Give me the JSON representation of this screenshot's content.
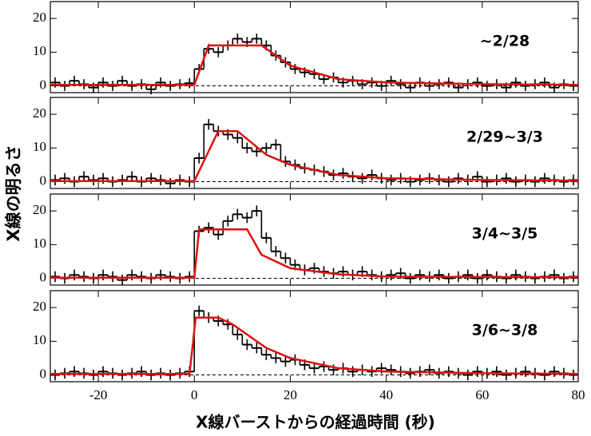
{
  "chart_data": {
    "type": "step",
    "xlabel": "X線バーストからの経過時間 (秒)",
    "ylabel": "X線の明るさ",
    "xlim": [
      -30,
      80
    ],
    "xticks": [
      -20,
      0,
      20,
      40,
      60,
      80
    ],
    "ylim": [
      -2,
      25
    ],
    "yticks": [
      0,
      10,
      20
    ],
    "data_color": "#000000",
    "model_color": "#e01010",
    "x": [
      -29,
      -27,
      -25,
      -23,
      -21,
      -19,
      -17,
      -15,
      -13,
      -11,
      -9,
      -7,
      -5,
      -3,
      -1,
      1,
      3,
      5,
      7,
      9,
      11,
      13,
      15,
      17,
      19,
      21,
      23,
      25,
      27,
      29,
      31,
      33,
      35,
      37,
      39,
      41,
      43,
      45,
      47,
      49,
      51,
      53,
      55,
      57,
      59,
      61,
      63,
      65,
      67,
      69,
      71,
      73,
      75,
      77,
      79
    ],
    "panels": [
      {
        "label": "~2/28",
        "error": 1.5,
        "values": [
          1,
          0,
          1.5,
          0.5,
          -0.5,
          1,
          0,
          1.5,
          0,
          0.5,
          -1,
          1,
          0,
          0.5,
          0.8,
          5,
          11,
          10,
          12,
          14,
          13,
          14,
          12,
          9,
          7,
          5,
          4,
          3.5,
          2,
          2.5,
          1,
          1.5,
          0.5,
          1,
          0,
          1.5,
          0.5,
          -0.5,
          1,
          0,
          0.5,
          1,
          -0.5,
          0.5,
          1,
          0,
          0.5,
          -0.5,
          1,
          0,
          0.5,
          1,
          -0.5,
          0.5,
          0
        ],
        "model_x": [
          -30,
          0,
          3,
          14,
          20,
          30,
          40,
          60,
          80
        ],
        "model_y": [
          0.3,
          0.3,
          12,
          12,
          6,
          2,
          1,
          0.5,
          0.3
        ]
      },
      {
        "label": "2/29~3/3",
        "error": 1.6,
        "values": [
          0.5,
          1,
          0,
          1.5,
          0.5,
          1,
          0,
          0.5,
          1.5,
          0,
          1,
          0.5,
          -0.5,
          0.5,
          0,
          7,
          17,
          15,
          14,
          13,
          10,
          9,
          10,
          11,
          6,
          5,
          4,
          3.5,
          3,
          2,
          2.5,
          1.5,
          1,
          2,
          1,
          0.5,
          1,
          0,
          0.5,
          1,
          0.5,
          0,
          1,
          0.5,
          1.5,
          0,
          0.5,
          1,
          0,
          0.5,
          0,
          1,
          0.5,
          0,
          0.5
        ],
        "model_x": [
          -30,
          0,
          5,
          9,
          15,
          20,
          30,
          40,
          60,
          80
        ],
        "model_y": [
          0.2,
          0.2,
          15,
          15,
          8,
          5,
          2,
          1,
          0.5,
          0.3
        ]
      },
      {
        "label": "3/4~3/5",
        "error": 1.6,
        "values": [
          0.5,
          0,
          1,
          0.5,
          0,
          1,
          0.5,
          -0.5,
          1,
          0.5,
          0,
          1,
          0.5,
          0,
          0.5,
          14,
          15,
          13,
          17,
          19,
          18,
          20,
          12,
          8,
          6,
          4,
          2.5,
          3,
          2,
          1.5,
          2,
          1,
          2,
          1,
          0.5,
          1,
          1.5,
          0,
          1,
          0.5,
          1,
          0,
          0.5,
          1,
          0,
          1,
          0.5,
          0,
          1,
          0.5,
          0,
          0.5,
          1,
          0,
          0.5
        ],
        "model_x": [
          -30,
          0,
          1,
          11,
          14,
          20,
          30,
          40,
          80
        ],
        "model_y": [
          0.2,
          0.2,
          14.5,
          14.5,
          7,
          3,
          1.2,
          0.5,
          0.3
        ]
      },
      {
        "label": "3/6~3/8",
        "error": 1.6,
        "values": [
          0,
          0.5,
          1,
          0.5,
          0,
          1,
          0.5,
          0,
          0.5,
          1,
          0,
          0.5,
          0,
          0.5,
          1,
          19,
          17,
          16,
          15,
          12,
          9,
          8,
          6,
          5,
          4,
          4.5,
          3,
          2,
          2.5,
          1.5,
          2,
          1,
          1.5,
          1,
          2,
          1.5,
          1,
          0.5,
          1,
          1.5,
          0.5,
          1,
          0.5,
          0,
          1,
          0.5,
          1,
          0,
          0.5,
          1,
          0.5,
          0,
          1,
          0.5,
          0
        ],
        "model_x": [
          -30,
          -1,
          0.3,
          5,
          8,
          15,
          20,
          30,
          40,
          60,
          80
        ],
        "model_y": [
          0.3,
          0.3,
          17,
          17,
          15,
          8,
          5,
          2,
          1,
          0.5,
          0.3
        ]
      }
    ]
  }
}
